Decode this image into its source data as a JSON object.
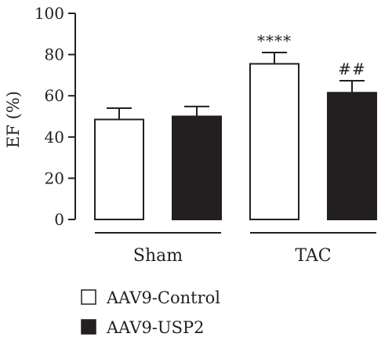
{
  "chart_data": {
    "type": "bar",
    "ylabel": "EF (%)",
    "ylim": [
      0,
      100
    ],
    "yticks": [
      0,
      20,
      40,
      60,
      80,
      100
    ],
    "groups": [
      "Sham",
      "TAC"
    ],
    "series": [
      {
        "name": "AAV9-Control",
        "color": "#ffffff",
        "values": [
          48.5,
          75.5
        ],
        "errors": [
          5.5,
          5.5
        ]
      },
      {
        "name": "AAV9-USP2",
        "color": "#231f20",
        "values": [
          50,
          61.5
        ],
        "errors": [
          4.8,
          5.8
        ]
      }
    ],
    "annotations": [
      {
        "group": 1,
        "series": 0,
        "text": "****"
      },
      {
        "group": 1,
        "series": 1,
        "text": "##"
      }
    ],
    "legend_position": "bottom-left",
    "grid": false
  }
}
